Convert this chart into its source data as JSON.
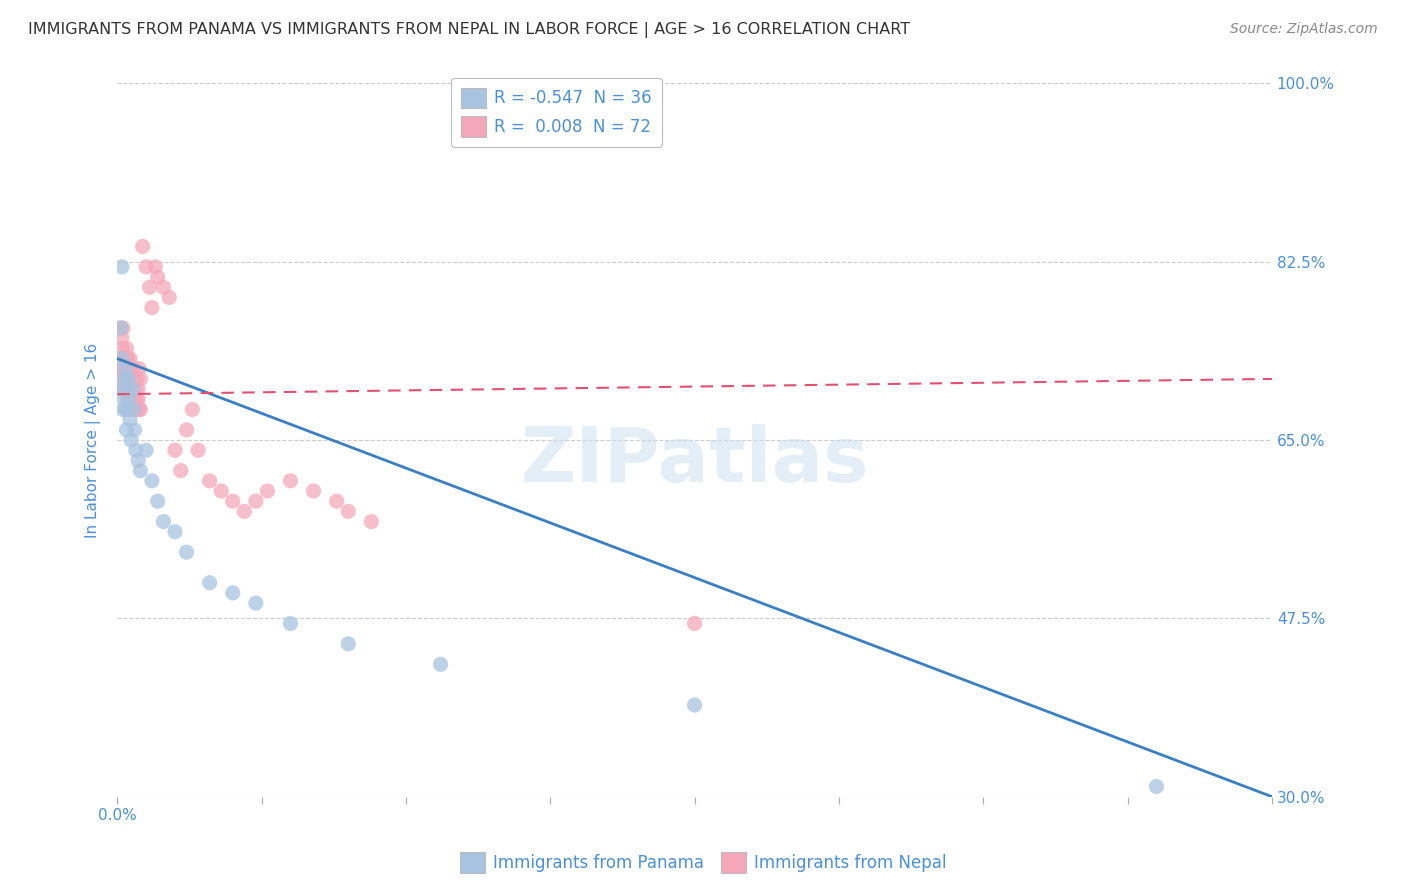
{
  "title": "IMMIGRANTS FROM PANAMA VS IMMIGRANTS FROM NEPAL IN LABOR FORCE | AGE > 16 CORRELATION CHART",
  "source_text": "Source: ZipAtlas.com",
  "ylabel": "In Labor Force | Age > 16",
  "xlabel": "",
  "legend_label1": "R = -0.547  N = 36",
  "legend_label2": "R =  0.008  N = 72",
  "series1_color": "#a8c4e0",
  "series1_line_color": "#3a7fc1",
  "series2_color": "#f4a7b9",
  "series2_line_color": "#e05070",
  "title_color": "#333333",
  "source_color": "#888888",
  "axis_label_color": "#4a90d9",
  "grid_color": "#cccccc",
  "background_color": "#ffffff",
  "ylim": [
    0.3,
    1.0
  ],
  "xlim": [
    0.0,
    1.0
  ],
  "yticks": [
    0.3,
    0.475,
    0.65,
    0.825,
    1.0
  ],
  "ytick_labels": [
    "30.0%",
    "47.5%",
    "65.0%",
    "82.5%",
    "100.0%"
  ],
  "panama_x": [
    0.003,
    0.004,
    0.004,
    0.005,
    0.005,
    0.006,
    0.006,
    0.007,
    0.007,
    0.008,
    0.008,
    0.009,
    0.01,
    0.01,
    0.011,
    0.012,
    0.013,
    0.014,
    0.015,
    0.016,
    0.018,
    0.02,
    0.025,
    0.03,
    0.035,
    0.04,
    0.05,
    0.06,
    0.08,
    0.1,
    0.12,
    0.15,
    0.2,
    0.28,
    0.5,
    0.9
  ],
  "panama_y": [
    0.76,
    0.82,
    0.73,
    0.7,
    0.68,
    0.69,
    0.71,
    0.68,
    0.72,
    0.7,
    0.66,
    0.68,
    0.69,
    0.71,
    0.67,
    0.65,
    0.7,
    0.68,
    0.66,
    0.64,
    0.63,
    0.62,
    0.64,
    0.61,
    0.59,
    0.57,
    0.56,
    0.54,
    0.51,
    0.5,
    0.49,
    0.47,
    0.45,
    0.43,
    0.39,
    0.31
  ],
  "nepal_x": [
    0.002,
    0.003,
    0.003,
    0.004,
    0.004,
    0.005,
    0.005,
    0.006,
    0.006,
    0.007,
    0.007,
    0.008,
    0.008,
    0.009,
    0.009,
    0.01,
    0.01,
    0.011,
    0.011,
    0.012,
    0.012,
    0.013,
    0.014,
    0.015,
    0.016,
    0.017,
    0.018,
    0.019,
    0.02,
    0.02,
    0.022,
    0.025,
    0.028,
    0.03,
    0.033,
    0.035,
    0.04,
    0.045,
    0.05,
    0.055,
    0.06,
    0.065,
    0.07,
    0.08,
    0.09,
    0.1,
    0.11,
    0.12,
    0.13,
    0.15,
    0.17,
    0.19,
    0.2,
    0.22,
    0.003,
    0.004,
    0.005,
    0.006,
    0.007,
    0.008,
    0.009,
    0.01,
    0.011,
    0.012,
    0.013,
    0.014,
    0.015,
    0.016,
    0.017,
    0.018,
    0.019,
    0.5
  ],
  "nepal_y": [
    0.72,
    0.71,
    0.7,
    0.73,
    0.75,
    0.76,
    0.72,
    0.73,
    0.7,
    0.71,
    0.73,
    0.74,
    0.7,
    0.72,
    0.69,
    0.71,
    0.68,
    0.7,
    0.73,
    0.72,
    0.7,
    0.71,
    0.69,
    0.72,
    0.71,
    0.69,
    0.7,
    0.72,
    0.71,
    0.68,
    0.84,
    0.82,
    0.8,
    0.78,
    0.82,
    0.81,
    0.8,
    0.79,
    0.64,
    0.62,
    0.66,
    0.68,
    0.64,
    0.61,
    0.6,
    0.59,
    0.58,
    0.59,
    0.6,
    0.61,
    0.6,
    0.59,
    0.58,
    0.57,
    0.76,
    0.74,
    0.73,
    0.72,
    0.7,
    0.71,
    0.73,
    0.7,
    0.72,
    0.71,
    0.7,
    0.69,
    0.68,
    0.7,
    0.71,
    0.69,
    0.68,
    0.47
  ],
  "blue_line_x0": 0.0,
  "blue_line_x1": 1.0,
  "blue_line_y0": 0.73,
  "blue_line_y1": 0.3,
  "pink_line_x0": 0.0,
  "pink_line_x1": 1.0,
  "pink_line_y0": 0.695,
  "pink_line_y1": 0.71
}
